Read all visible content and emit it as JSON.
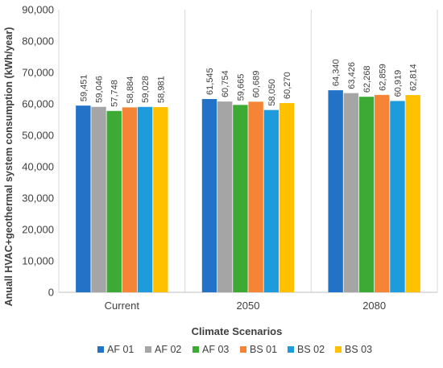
{
  "chart_data": {
    "type": "bar",
    "title": "",
    "xlabel": "Climate Scenarios",
    "ylabel": "Anuall HVAC+geothermal system consumption (kWh/year)",
    "ylim": [
      0,
      90000
    ],
    "yticks": [
      0,
      10000,
      20000,
      30000,
      40000,
      50000,
      60000,
      70000,
      80000,
      90000
    ],
    "ytick_labels": [
      "0",
      "10,000",
      "20,000",
      "30,000",
      "40,000",
      "50,000",
      "60,000",
      "70,000",
      "80,000",
      "90,000"
    ],
    "categories": [
      "Current",
      "2050",
      "2080"
    ],
    "grid": "vertical category separators",
    "legend_position": "bottom",
    "series": [
      {
        "name": "AF 01",
        "color": "#2272C8",
        "values": [
          59451,
          61545,
          64340
        ],
        "labels": [
          "59,451",
          "61,545",
          "64,340"
        ]
      },
      {
        "name": "AF 02",
        "color": "#A5A5A5",
        "values": [
          59046,
          60754,
          63426
        ],
        "labels": [
          "59,046",
          "60,754",
          "63,426"
        ]
      },
      {
        "name": "AF 03",
        "color": "#3DAA35",
        "values": [
          57748,
          59665,
          62268
        ],
        "labels": [
          "57,748",
          "59,665",
          "62,268"
        ]
      },
      {
        "name": "BS 01",
        "color": "#F58436",
        "values": [
          58884,
          60689,
          62859
        ],
        "labels": [
          "58,884",
          "60,689",
          "62,859"
        ]
      },
      {
        "name": "BS 02",
        "color": "#1E9BDC",
        "values": [
          59028,
          58050,
          60919
        ],
        "labels": [
          "59,028",
          "58,050",
          "60,919"
        ]
      },
      {
        "name": "BS 03",
        "color": "#FFC000",
        "values": [
          58981,
          60270,
          62814
        ],
        "labels": [
          "58,981",
          "60,270",
          "62,814"
        ]
      }
    ]
  }
}
